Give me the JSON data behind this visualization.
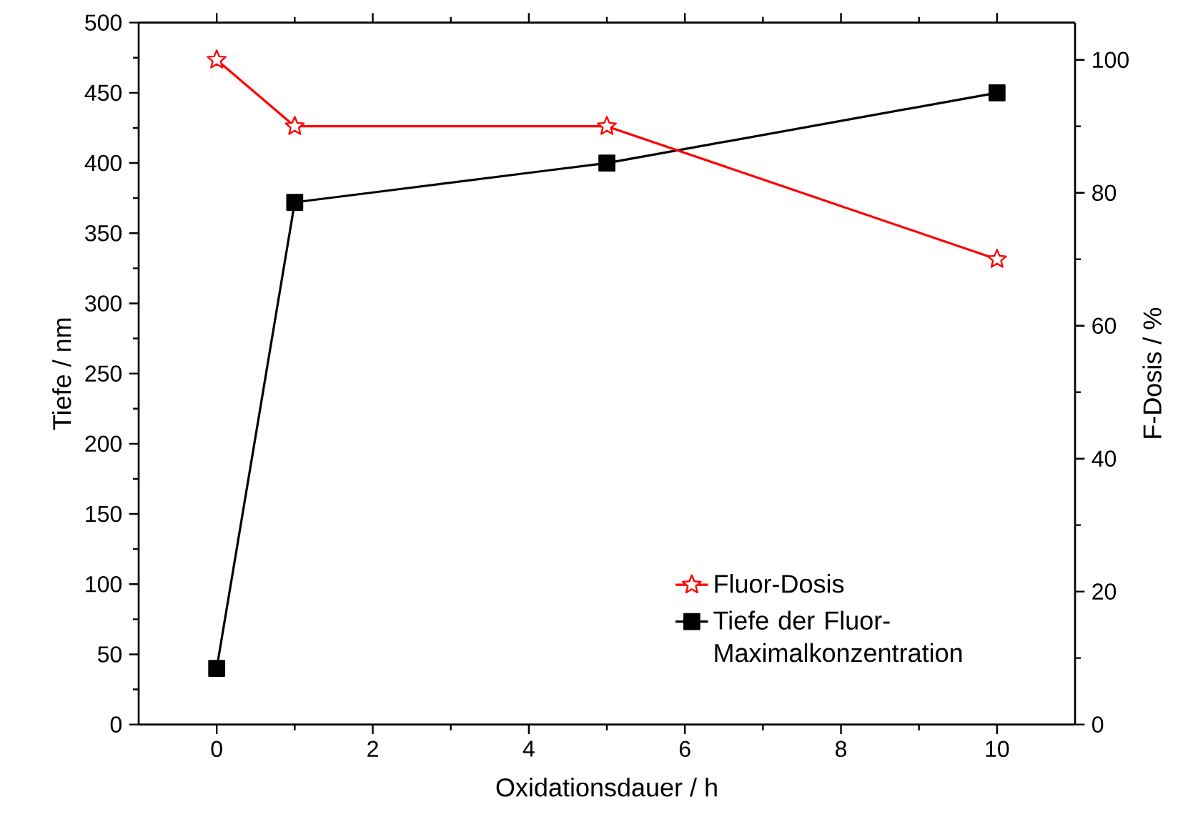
{
  "chart_data": {
    "type": "line",
    "xlabel": "Oxidationsdauer / h",
    "ylabel": "Tiefe / nm",
    "y2label": "F-Dosis / %",
    "x": [
      0,
      1,
      5,
      10
    ],
    "series": [
      {
        "name": "Fluor-Dosis",
        "color": "#ff0000",
        "values": [
          100,
          90,
          90,
          70
        ],
        "axis": "y2",
        "marker": "star"
      },
      {
        "name": "Tiefe der Fluor-Maximalkonzentration",
        "color": "#000000",
        "values": [
          40,
          372,
          400,
          450
        ],
        "marker": "square"
      }
    ],
    "xlim": [
      -1,
      11
    ],
    "xticks": [
      0,
      2,
      4,
      6,
      8,
      10
    ],
    "ylim": [
      0,
      500
    ],
    "yticks": [
      0,
      50,
      100,
      150,
      200,
      250,
      300,
      350,
      400,
      450,
      500
    ],
    "y2lim": [
      0,
      105.6
    ],
    "y2ticks": [
      0,
      20,
      40,
      60,
      80,
      100
    ],
    "legend": "bottom right",
    "line_style": "solid",
    "grid": false
  }
}
